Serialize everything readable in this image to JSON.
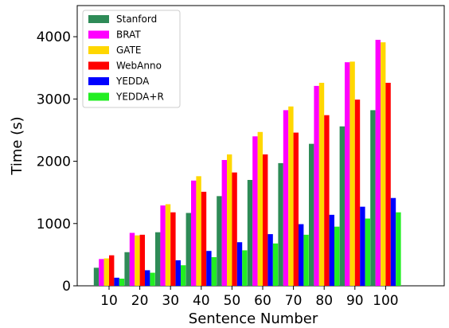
{
  "chart_data": {
    "type": "bar",
    "xlabel": "Sentence Number",
    "ylabel": "Time (s)",
    "categories": [
      "10",
      "20",
      "30",
      "40",
      "50",
      "60",
      "70",
      "80",
      "90",
      "100"
    ],
    "ylim": [
      0,
      4500
    ],
    "yticks": [
      0,
      1000,
      2000,
      3000,
      4000
    ],
    "legend_position": "top-left",
    "grid": false,
    "series": [
      {
        "name": "Stanford",
        "color": "#2e8b57",
        "values": [
          290,
          540,
          860,
          1170,
          1440,
          1700,
          1970,
          2280,
          2560,
          2820
        ]
      },
      {
        "name": "BRAT",
        "color": "#ff00ff",
        "values": [
          430,
          850,
          1290,
          1690,
          2020,
          2400,
          2820,
          3210,
          3590,
          3950
        ]
      },
      {
        "name": "GATE",
        "color": "#ffd700",
        "values": [
          440,
          810,
          1310,
          1760,
          2110,
          2470,
          2880,
          3260,
          3600,
          3910
        ]
      },
      {
        "name": "WebAnno",
        "color": "#ff0000",
        "values": [
          490,
          820,
          1180,
          1510,
          1820,
          2110,
          2460,
          2740,
          2990,
          3260
        ]
      },
      {
        "name": "YEDDA",
        "color": "#0000ff",
        "values": [
          130,
          250,
          410,
          560,
          700,
          830,
          990,
          1140,
          1270,
          1410
        ]
      },
      {
        "name": "YEDDA+R",
        "color": "#22ee22",
        "values": [
          115,
          210,
          330,
          460,
          570,
          680,
          820,
          950,
          1080,
          1180
        ]
      }
    ]
  }
}
